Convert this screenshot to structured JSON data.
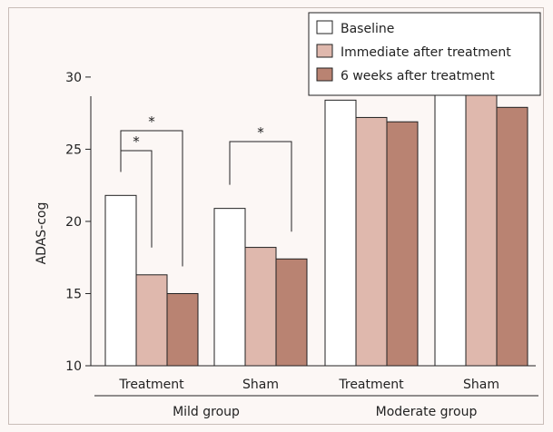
{
  "chart_data": {
    "type": "bar",
    "ylabel": "ADAS-cog",
    "ylim": [
      10,
      31
    ],
    "yticks": [
      10,
      15,
      20,
      25,
      30
    ],
    "categories": [
      "Treatment",
      "Sham",
      "Treatment",
      "Sham"
    ],
    "groups": [
      {
        "label": "Mild group",
        "categories": [
          0,
          1
        ]
      },
      {
        "label": "Moderate group",
        "categories": [
          2,
          3
        ]
      }
    ],
    "series": [
      {
        "name": "Baseline",
        "color": "#ffffff",
        "values": [
          21.8,
          20.9,
          28.4,
          29.0
        ]
      },
      {
        "name": "Immediate after treatment",
        "color": "#dfb8ad",
        "values": [
          16.3,
          18.2,
          27.2,
          30.0
        ]
      },
      {
        "name": "6 weeks after treatment",
        "color": "#b98372",
        "values": [
          15.0,
          17.4,
          26.9,
          27.9
        ]
      }
    ],
    "legend_position": "top-right",
    "significance": [
      {
        "category": 0,
        "from_series": 0,
        "to_series": 1,
        "label": "*"
      },
      {
        "category": 0,
        "from_series": 0,
        "to_series": 2,
        "label": "*"
      },
      {
        "category": 1,
        "from_series": 0,
        "to_series": 2,
        "label": "*"
      }
    ]
  }
}
